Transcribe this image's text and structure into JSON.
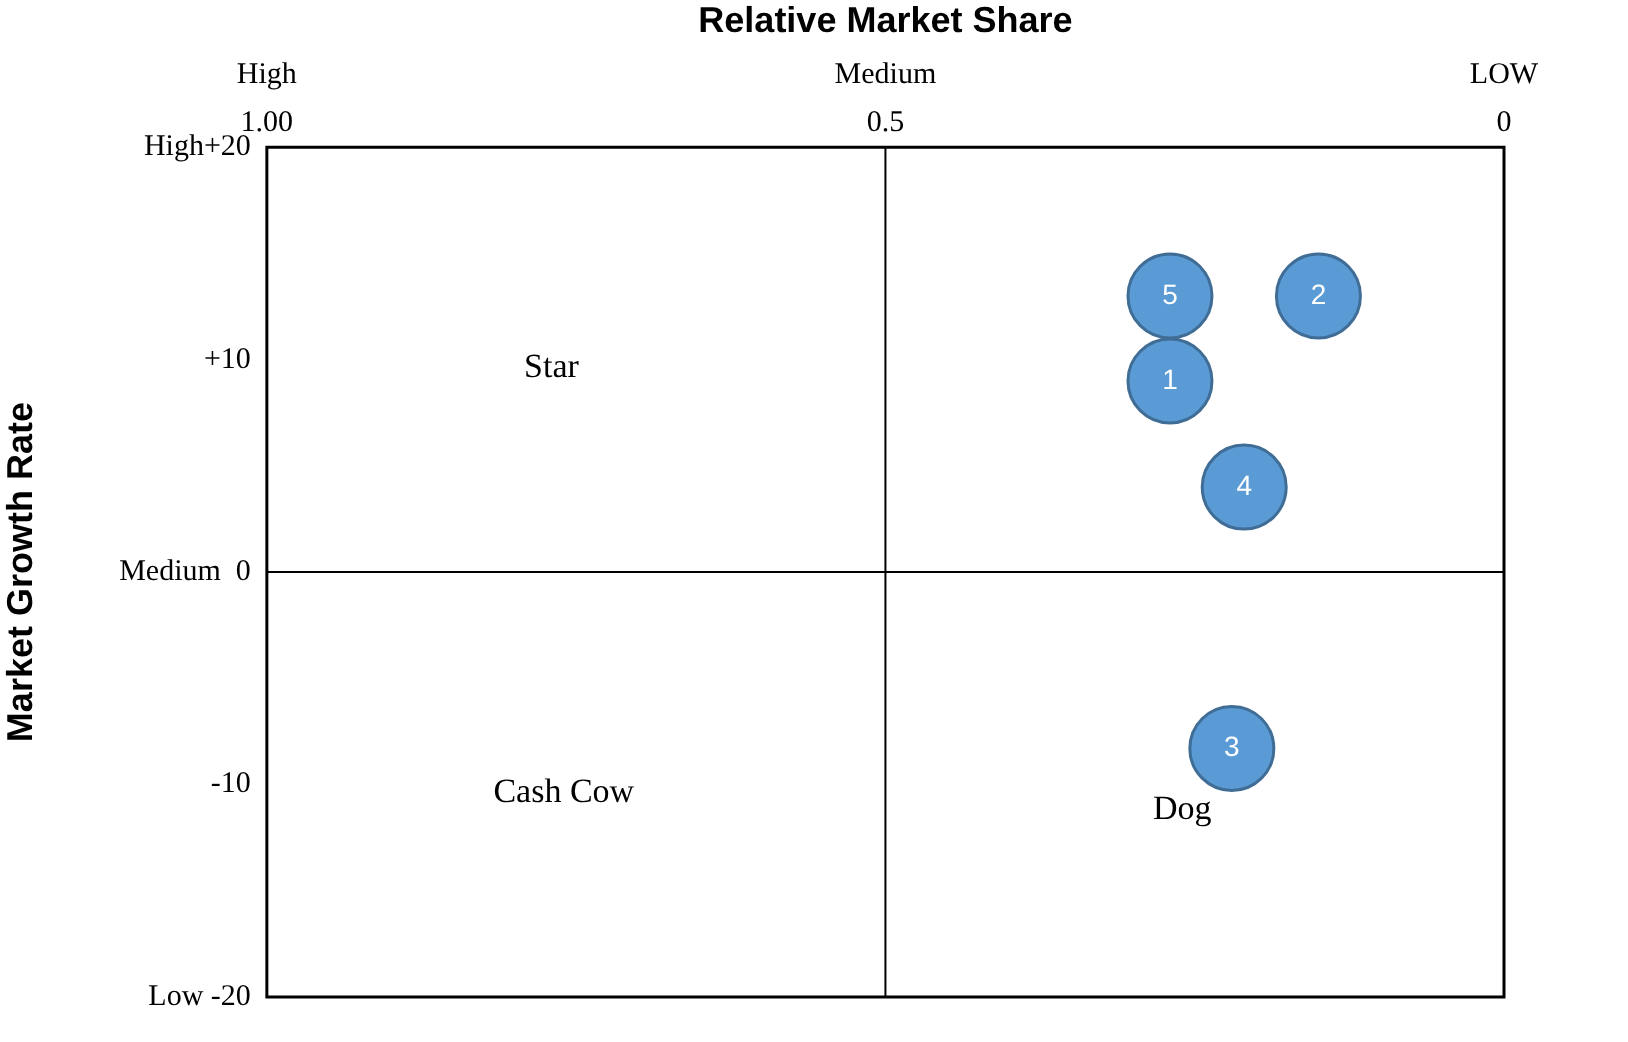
{
  "chart_data": {
    "type": "bubble",
    "xlabel": "Relative Market Share",
    "ylabel": "Market Growth Rate",
    "x": [
      0.27,
      0.15,
      0.22,
      0.21,
      0.27
    ],
    "values": [
      9,
      13,
      -8.3,
      4,
      13
    ],
    "sizes": [
      1,
      1,
      1,
      1,
      1
    ],
    "color": "#5b9bd5",
    "xlim": [
      1,
      0
    ],
    "xticks": [
      {
        "value": 1,
        "label": "1.00"
      },
      0.5,
      0
    ],
    "ylim": [
      -20,
      20
    ],
    "yticks": [
      {
        "value": 20,
        "label": "High+20"
      },
      {
        "value": 10,
        "label": "+10"
      },
      {
        "value": 0,
        "label": "Medium  0"
      },
      {
        "value": -10,
        "label": "-10"
      },
      {
        "value": -20,
        "label": "Low -20"
      }
    ],
    "ref_lines": [
      {
        "axis": "x",
        "value": 0.5
      },
      {
        "axis": "y",
        "value": 0
      }
    ],
    "annotations": [
      {
        "text": "1",
        "x": 0.27,
        "y": 9
      },
      {
        "text": "2",
        "x": 0.15,
        "y": 13
      },
      {
        "text": "3",
        "x": 0.22,
        "y": -8.3
      },
      {
        "text": "4",
        "x": 0.21,
        "y": 4
      },
      {
        "text": "5",
        "x": 0.27,
        "y": 13
      },
      "High",
      "Medium",
      "LOW",
      "Star",
      "Cash Cow",
      "Dog"
    ],
    "grid": false,
    "legend": false
  }
}
